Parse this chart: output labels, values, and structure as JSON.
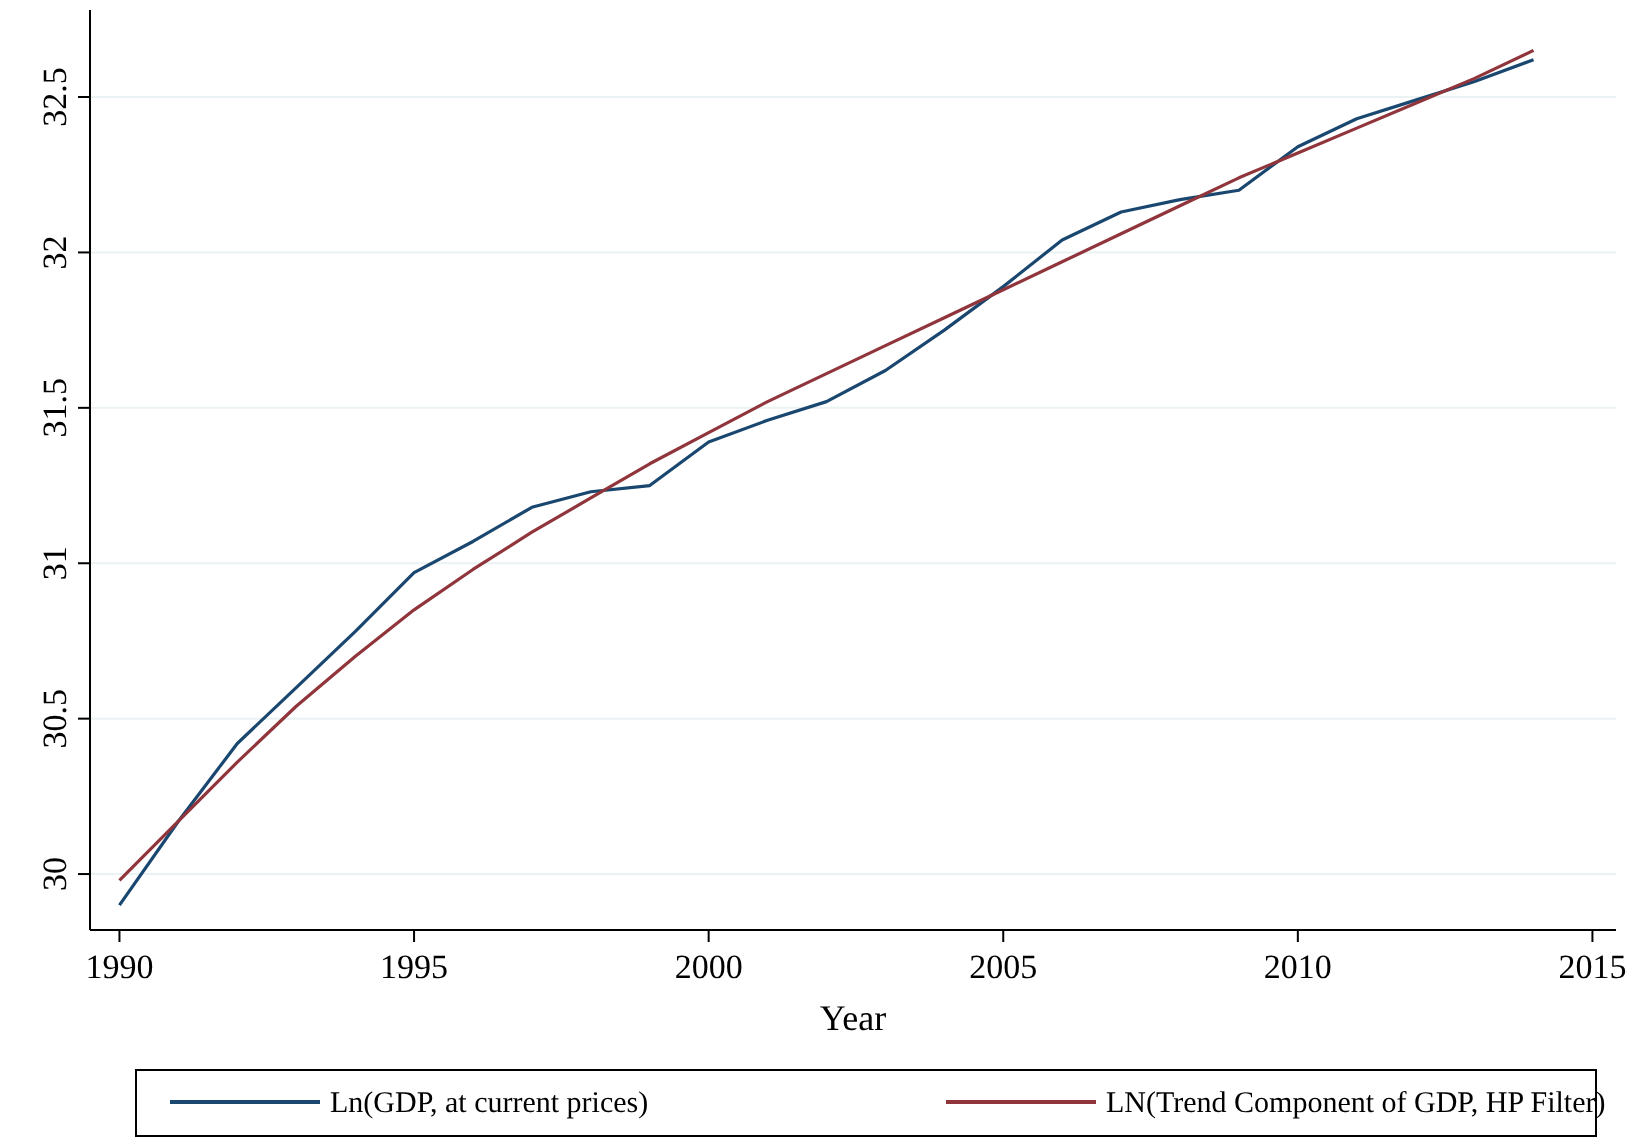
{
  "chart_data": {
    "type": "line",
    "xlabel": "Year",
    "x": [
      1990,
      1991,
      1992,
      1993,
      1994,
      1995,
      1996,
      1997,
      1998,
      1999,
      2000,
      2001,
      2002,
      2003,
      2004,
      2005,
      2006,
      2007,
      2008,
      2009,
      2010,
      2011,
      2012,
      2013,
      2014
    ],
    "series": [
      {
        "name": "Ln(GDP, at current prices)",
        "color": "#1a476f",
        "values": [
          29.9,
          30.17,
          30.42,
          30.6,
          30.78,
          30.97,
          31.07,
          31.18,
          31.23,
          31.25,
          31.39,
          31.46,
          31.52,
          31.62,
          31.75,
          31.89,
          32.04,
          32.13,
          32.17,
          32.2,
          32.34,
          32.43,
          32.49,
          32.55,
          32.62
        ]
      },
      {
        "name": "LN(Trend Component of GDP, HP Filter)",
        "color": "#90353b",
        "values": [
          29.98,
          30.17,
          30.36,
          30.54,
          30.7,
          30.85,
          30.98,
          31.1,
          31.21,
          31.32,
          31.42,
          31.52,
          31.61,
          31.7,
          31.79,
          31.88,
          31.97,
          32.06,
          32.15,
          32.24,
          32.32,
          32.4,
          32.48,
          32.56,
          32.65
        ]
      }
    ],
    "xlim": [
      1989.5,
      2015.4
    ],
    "xticks": [
      1990,
      1995,
      2000,
      2005,
      2010,
      2015
    ],
    "ylim": [
      29.82,
      32.78
    ],
    "yticks": [
      30,
      30.5,
      31,
      31.5,
      32,
      32.5
    ],
    "grid": "y",
    "legend": "bottom",
    "marker": "none",
    "line_style": "solid"
  }
}
